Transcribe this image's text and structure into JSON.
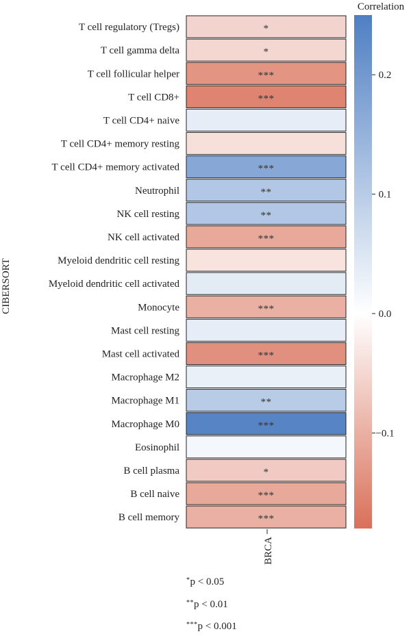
{
  "chart_data": {
    "type": "heatmap",
    "ylabel": "CIBERSORT",
    "columns": [
      "BRCA"
    ],
    "rows": [
      {
        "label": "T cell regulatory (Tregs)",
        "value": -0.055,
        "sig": "*"
      },
      {
        "label": "T cell gamma delta",
        "value": -0.05,
        "sig": "*"
      },
      {
        "label": "T cell follicular helper",
        "value": -0.135,
        "sig": "***"
      },
      {
        "label": "T cell CD8+",
        "value": -0.155,
        "sig": "***"
      },
      {
        "label": "T cell CD4+ naive",
        "value": 0.035,
        "sig": ""
      },
      {
        "label": "T cell CD4+ memory resting",
        "value": -0.04,
        "sig": ""
      },
      {
        "label": "T cell CD4+ memory activated",
        "value": 0.17,
        "sig": "***"
      },
      {
        "label": "Neutrophil",
        "value": 0.11,
        "sig": "**"
      },
      {
        "label": "NK cell resting",
        "value": 0.11,
        "sig": "**"
      },
      {
        "label": "NK cell activated",
        "value": -0.11,
        "sig": "***"
      },
      {
        "label": "Myeloid dendritic cell resting",
        "value": -0.035,
        "sig": ""
      },
      {
        "label": "Myeloid dendritic cell activated",
        "value": 0.04,
        "sig": ""
      },
      {
        "label": "Monocyte",
        "value": -0.1,
        "sig": "***"
      },
      {
        "label": "Mast cell resting",
        "value": 0.035,
        "sig": ""
      },
      {
        "label": "Mast cell activated",
        "value": -0.14,
        "sig": "***"
      },
      {
        "label": "Macrophage M2",
        "value": 0.03,
        "sig": ""
      },
      {
        "label": "Macrophage M1",
        "value": 0.1,
        "sig": "**"
      },
      {
        "label": "Macrophage M0",
        "value": 0.24,
        "sig": "***"
      },
      {
        "label": "Eosinophil",
        "value": 0.015,
        "sig": ""
      },
      {
        "label": "B cell plasma",
        "value": -0.065,
        "sig": "*"
      },
      {
        "label": "B cell naive",
        "value": -0.11,
        "sig": "***"
      },
      {
        "label": "B cell memory",
        "value": -0.1,
        "sig": "***"
      }
    ],
    "colorbar": {
      "title": "Correlation",
      "range": [
        -0.18,
        0.25
      ],
      "ticks": [
        {
          "value": 0.2,
          "label": "0.2"
        },
        {
          "value": 0.1,
          "label": "0.1"
        },
        {
          "value": 0.0,
          "label": "0.0"
        },
        {
          "value": -0.1,
          "label": "−0.1"
        }
      ],
      "colors": {
        "negative": "#d9705a",
        "zero": "#ffffff",
        "positive": "#4f7fc3"
      }
    },
    "significance_legend": [
      {
        "marker": "*",
        "text": "p < 0.05"
      },
      {
        "marker": "**",
        "text": "p < 0.01"
      },
      {
        "marker": "***",
        "text": "p < 0.001"
      }
    ]
  }
}
